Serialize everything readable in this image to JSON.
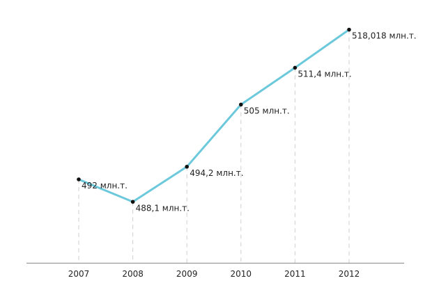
{
  "chart_data": {
    "type": "line",
    "categories": [
      "2007",
      "2008",
      "2009",
      "2010",
      "2011",
      "2012"
    ],
    "values": [
      492,
      488.1,
      494.2,
      505,
      511.4,
      518.018
    ],
    "data_labels": [
      "492 млн.т.",
      "488,1 млн.т.",
      "494,2 млн.т.",
      "505 млн.т.",
      "511,4 млн.т.",
      "518,018 млн.т."
    ],
    "title": "",
    "xlabel": "",
    "ylabel": "",
    "ylim": [
      477.5,
      518.7
    ],
    "grid": "vertical dashed drop lines",
    "legend": "none",
    "colors": {
      "line": "#6cc9dc",
      "point": "#111111",
      "grid": "#cfcfcf",
      "axis": "#888888"
    }
  }
}
